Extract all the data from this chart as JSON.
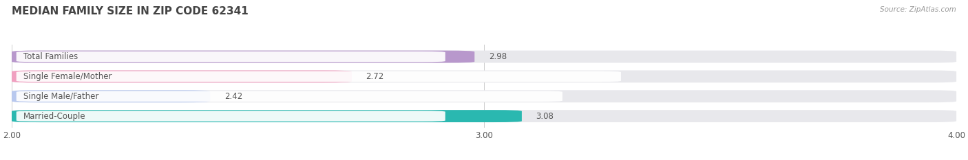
{
  "title": "MEDIAN FAMILY SIZE IN ZIP CODE 62341",
  "source": "Source: ZipAtlas.com",
  "categories": [
    "Married-Couple",
    "Single Male/Father",
    "Single Female/Mother",
    "Total Families"
  ],
  "values": [
    3.08,
    2.42,
    2.72,
    2.98
  ],
  "bar_colors": [
    "#2ab8b0",
    "#b8c8ee",
    "#f0a0c0",
    "#b898cc"
  ],
  "bar_bg_color": "#e8e8ec",
  "xlim": [
    2.0,
    4.0
  ],
  "xticks": [
    2.0,
    3.0,
    4.0
  ],
  "xtick_labels": [
    "2.00",
    "3.00",
    "4.00"
  ],
  "label_fontsize": 8.5,
  "value_fontsize": 8.5,
  "title_fontsize": 11,
  "bar_height": 0.62,
  "background_color": "#ffffff",
  "text_color": "#555555",
  "title_color": "#444444",
  "grid_color": "#cccccc",
  "source_color": "#999999"
}
